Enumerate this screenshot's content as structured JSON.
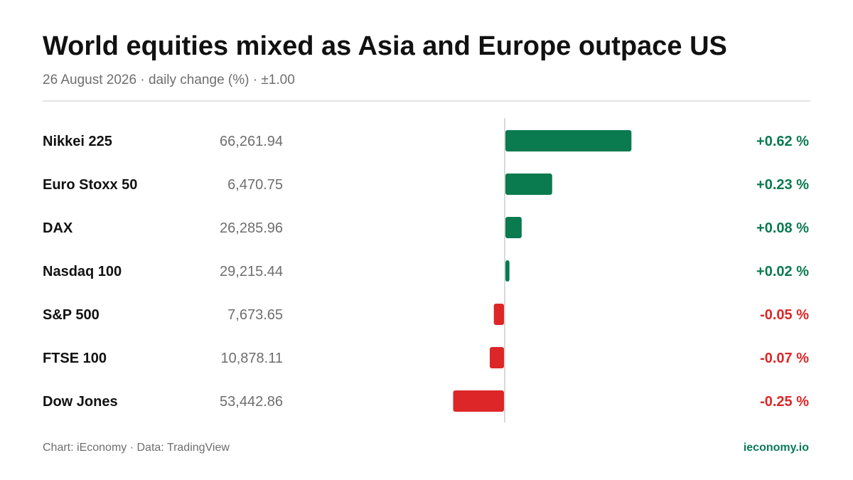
{
  "header": {
    "title": "World equities mixed as Asia and Europe outpace US",
    "subtitle": "26 August 2026 · daily change (%) · ±1.00"
  },
  "footer": {
    "source": "Chart: iEconomy · Data: TradingView",
    "brand": "ieconomy.io"
  },
  "colors": {
    "positive": "#0a7a4f",
    "negative": "#dd2627",
    "positive_text": "#0a7a4f",
    "negative_text": "#dd2627"
  },
  "chart_data": {
    "type": "bar",
    "orientation": "horizontal",
    "categories": [
      "Nikkei 225",
      "Euro Stoxx 50",
      "DAX",
      "Nasdaq 100",
      "S&P 500",
      "FTSE 100",
      "Dow Jones"
    ],
    "levels": [
      "66,261.94",
      "6,470.75",
      "26,285.96",
      "29,215.44",
      "7,673.65",
      "10,878.11",
      "53,442.86"
    ],
    "values": [
      0.62,
      0.23,
      0.08,
      0.02,
      -0.05,
      -0.07,
      -0.25
    ],
    "value_labels": [
      "+0.62 %",
      "+0.23 %",
      "+0.08 %",
      "+0.02 %",
      "-0.05 %",
      "-0.07 %",
      "-0.25 %"
    ],
    "xlim": [
      -1.0,
      1.0
    ],
    "grid": false
  }
}
